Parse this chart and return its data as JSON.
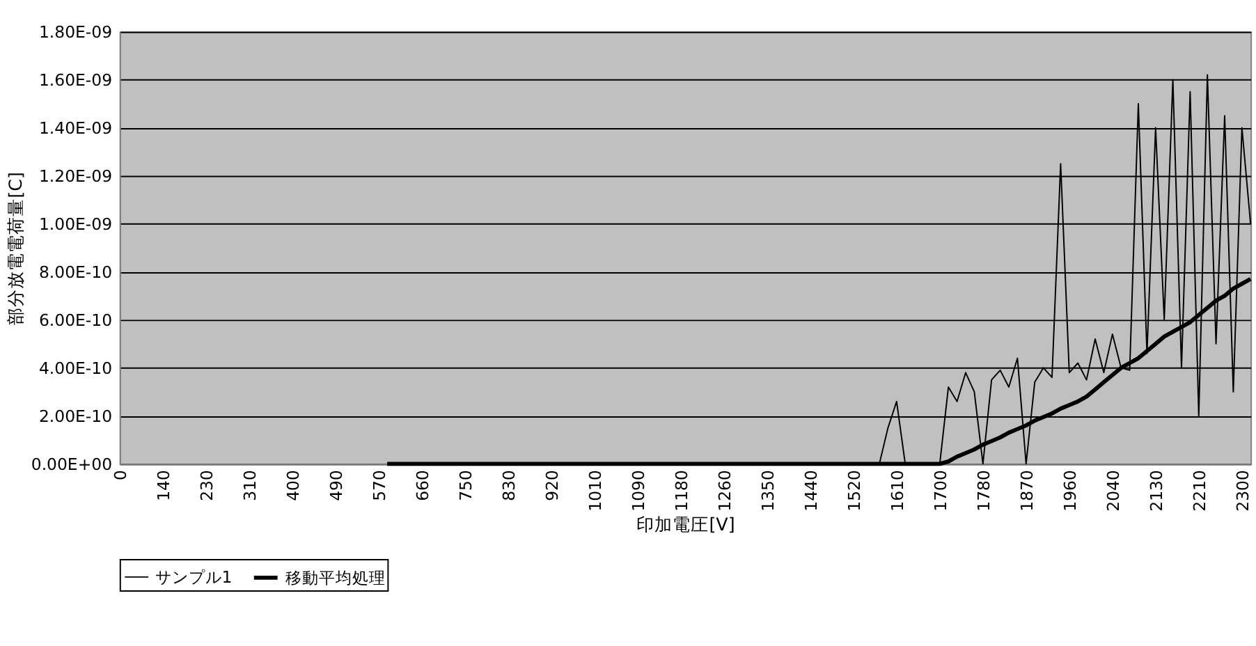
{
  "chart_data": {
    "type": "line",
    "xlabel": "印加電圧[V]",
    "ylabel": "部分放電電荷量[C]",
    "categories": [
      "0",
      null,
      null,
      null,
      null,
      "140",
      null,
      null,
      null,
      null,
      "230",
      null,
      null,
      null,
      null,
      "310",
      null,
      null,
      null,
      null,
      "400",
      null,
      null,
      null,
      null,
      "490",
      null,
      null,
      null,
      null,
      "570",
      null,
      null,
      null,
      null,
      "660",
      null,
      null,
      null,
      null,
      "750",
      null,
      null,
      null,
      null,
      "830",
      null,
      null,
      null,
      null,
      "920",
      null,
      null,
      null,
      null,
      "1010",
      null,
      null,
      null,
      null,
      "1090",
      null,
      null,
      null,
      null,
      "1180",
      null,
      null,
      null,
      null,
      "1260",
      null,
      null,
      null,
      null,
      "1350",
      null,
      null,
      null,
      null,
      "1440",
      null,
      null,
      null,
      null,
      "1520",
      null,
      null,
      null,
      null,
      "1610",
      null,
      null,
      null,
      null,
      "1700",
      null,
      null,
      null,
      null,
      "1780",
      null,
      null,
      null,
      null,
      "1870",
      null,
      null,
      null,
      null,
      "1960",
      null,
      null,
      null,
      null,
      "2040",
      null,
      null,
      null,
      null,
      "2130",
      null,
      null,
      null,
      null,
      "2210",
      null,
      null,
      null,
      null,
      "2300",
      null
    ],
    "series": [
      {
        "name": "サンプル1",
        "color": "#000000",
        "values": [
          null,
          null,
          null,
          null,
          null,
          null,
          null,
          null,
          null,
          null,
          null,
          null,
          null,
          null,
          null,
          null,
          null,
          null,
          null,
          null,
          null,
          null,
          null,
          null,
          null,
          null,
          null,
          null,
          null,
          null,
          null,
          0,
          0,
          0,
          0,
          0,
          0,
          0,
          0,
          0,
          0,
          0,
          0,
          0,
          0,
          0,
          0,
          0,
          0,
          0,
          0,
          0,
          0,
          0,
          0,
          0,
          0,
          0,
          0,
          0,
          0,
          0,
          0,
          0,
          0,
          0,
          0,
          0,
          0,
          0,
          0,
          0,
          0,
          0,
          0,
          0,
          0,
          0,
          0,
          0,
          0,
          0,
          0,
          0,
          0,
          0,
          0,
          0,
          0,
          1.5e-10,
          2.6e-10,
          0,
          0,
          0,
          0,
          0,
          3.2e-10,
          2.6e-10,
          3.8e-10,
          3e-10,
          0,
          3.5e-10,
          3.9e-10,
          3.2e-10,
          4.4e-10,
          0,
          3.4e-10,
          4e-10,
          3.6e-10,
          1.25e-09,
          3.8e-10,
          4.2e-10,
          3.5e-10,
          5.2e-10,
          3.8e-10,
          5.4e-10,
          4e-10,
          3.9e-10,
          1.5e-09,
          4.6e-10,
          1.4e-09,
          6e-10,
          1.6e-09,
          4e-10,
          1.55e-09,
          2e-10,
          1.62e-09,
          5e-10,
          1.45e-09,
          3e-10,
          1.4e-09,
          1e-09
        ]
      },
      {
        "name": "移動平均処理",
        "color": "#000000",
        "values": [
          null,
          null,
          null,
          null,
          null,
          null,
          null,
          null,
          null,
          null,
          null,
          null,
          null,
          null,
          null,
          null,
          null,
          null,
          null,
          null,
          null,
          null,
          null,
          null,
          null,
          null,
          null,
          null,
          null,
          null,
          null,
          0,
          0,
          0,
          0,
          0,
          0,
          0,
          0,
          0,
          0,
          0,
          0,
          0,
          0,
          0,
          0,
          0,
          0,
          0,
          0,
          0,
          0,
          0,
          0,
          0,
          0,
          0,
          0,
          0,
          0,
          0,
          0,
          0,
          0,
          0,
          0,
          0,
          0,
          0,
          0,
          0,
          0,
          0,
          0,
          0,
          0,
          0,
          0,
          0,
          0,
          0,
          0,
          0,
          0,
          0,
          0,
          0,
          0,
          0,
          0,
          0,
          0,
          0,
          0,
          0,
          1e-11,
          3e-11,
          4.5e-11,
          6e-11,
          8e-11,
          9.5e-11,
          1.1e-10,
          1.3e-10,
          1.45e-10,
          1.6e-10,
          1.8e-10,
          1.95e-10,
          2.1e-10,
          2.3e-10,
          2.45e-10,
          2.6e-10,
          2.8e-10,
          3.1e-10,
          3.4e-10,
          3.7e-10,
          4e-10,
          4.2e-10,
          4.4e-10,
          4.7e-10,
          5e-10,
          5.3e-10,
          5.5e-10,
          5.7e-10,
          5.9e-10,
          6.2e-10,
          6.5e-10,
          6.8e-10,
          7e-10,
          7.3e-10,
          7.5e-10,
          7.7e-10
        ]
      }
    ],
    "ylim": [
      0,
      1.8e-09
    ],
    "yticks": [
      {
        "value": 0,
        "label": "0.00E+00"
      },
      {
        "value": 2e-10,
        "label": "2.00E-10"
      },
      {
        "value": 4e-10,
        "label": "4.00E-10"
      },
      {
        "value": 6e-10,
        "label": "6.00E-10"
      },
      {
        "value": 8e-10,
        "label": "8.00E-10"
      },
      {
        "value": 1e-09,
        "label": "1.00E-09"
      },
      {
        "value": 1.2e-09,
        "label": "1.20E-09"
      },
      {
        "value": 1.4e-09,
        "label": "1.40E-09"
      },
      {
        "value": 1.6e-09,
        "label": "1.60E-09"
      },
      {
        "value": 1.8e-09,
        "label": "1.80E-09"
      }
    ],
    "grid": "y",
    "legend": "bottom",
    "marker": "none",
    "line_style": "solid"
  }
}
